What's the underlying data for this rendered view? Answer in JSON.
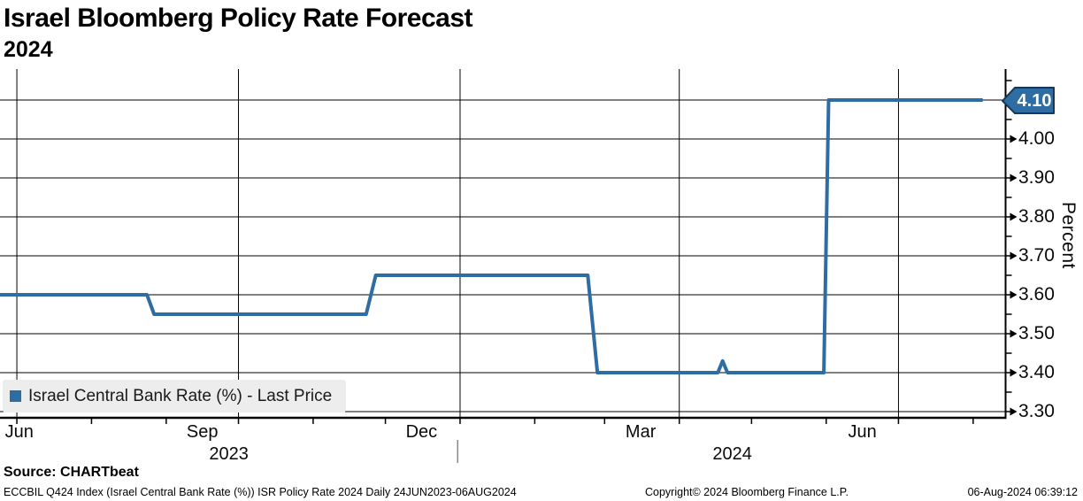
{
  "title": "Israel Bloomberg Policy Rate Forecast",
  "subtitle": "2024",
  "legend": {
    "marker_color": "#2e6da4",
    "label": "Israel Central Bank Rate (%) - Last Price"
  },
  "y_axis_title": "Percent",
  "last_price_badge": {
    "label": "4.10",
    "value": 4.1,
    "fill": "#2e6da4",
    "border": "#18365a",
    "text_color": "#ffffff"
  },
  "source_line": "Source: CHARTbeat",
  "footer": {
    "left": "ECCBIL Q424 Index (Israel Central Bank Rate (%)) ISR Policy Rate 2024  Daily 24JUN2023-06AUG2024",
    "center": "Copyright© 2024 Bloomberg Finance L.P.",
    "right": "06-Aug-2024 06:39:12"
  },
  "chart_data": {
    "type": "line",
    "title": "Israel Bloomberg Policy Rate Forecast 2024",
    "x_start": "24JUN2023",
    "x_end": "06AUG2024",
    "frequency": "Daily",
    "grid": true,
    "legend_position": "bottom-left",
    "y_axis": {
      "label": "Percent",
      "min": 3.3,
      "max": 4.1,
      "major_step": 0.1,
      "minor_step": 0.05,
      "ticks": [
        {
          "label": "4.00",
          "value": 4.0
        },
        {
          "label": "3.90",
          "value": 3.9
        },
        {
          "label": "3.80",
          "value": 3.8
        },
        {
          "label": "3.70",
          "value": 3.7
        },
        {
          "label": "3.60",
          "value": 3.6
        },
        {
          "label": "3.50",
          "value": 3.5
        },
        {
          "label": "3.40",
          "value": 3.4
        },
        {
          "label": "3.30",
          "value": 3.3
        }
      ]
    },
    "x_axis": {
      "unit": "days_since_24JUN2023",
      "month_tick_days": [
        7,
        38,
        69,
        99,
        130,
        160,
        191,
        222,
        251,
        282,
        312,
        343,
        373,
        404
      ],
      "quarter_gridline_days": [
        7,
        99,
        191,
        282,
        373
      ],
      "month_labels": [
        {
          "label": "Jun",
          "day": 8
        },
        {
          "label": "Sep",
          "day": 84
        },
        {
          "label": "Dec",
          "day": 175
        },
        {
          "label": "Mar",
          "day": 266
        },
        {
          "label": "Jun",
          "day": 358
        }
      ],
      "year_labels": [
        {
          "label": "2023",
          "day": 95
        },
        {
          "label": "2024",
          "day": 304
        }
      ],
      "year_divider_days": [
        190
      ]
    },
    "series": [
      {
        "name": "Israel Central Bank Rate (%) - Last Price",
        "color": "#2e6da4",
        "last_value": 4.1,
        "points_day_value": [
          [
            0,
            3.6
          ],
          [
            61,
            3.6
          ],
          [
            64,
            3.55
          ],
          [
            152,
            3.55
          ],
          [
            156,
            3.65
          ],
          [
            244,
            3.65
          ],
          [
            248,
            3.4
          ],
          [
            298,
            3.4
          ],
          [
            300,
            3.43
          ],
          [
            302,
            3.4
          ],
          [
            342,
            3.4
          ],
          [
            344,
            4.1
          ],
          [
            408,
            4.1
          ]
        ]
      }
    ]
  }
}
